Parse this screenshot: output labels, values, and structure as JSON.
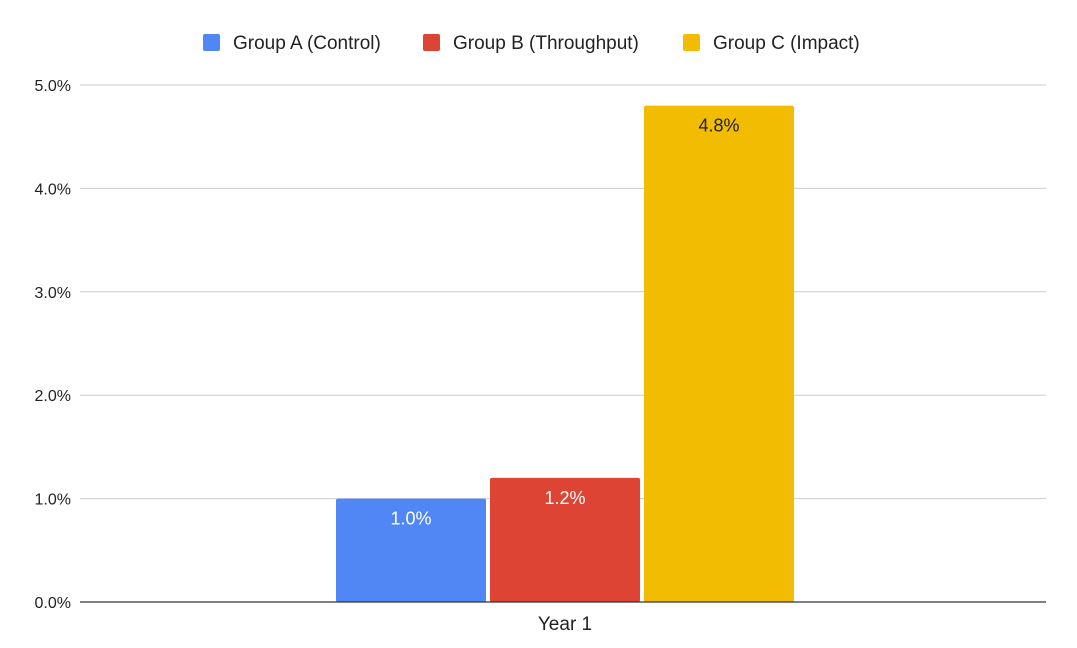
{
  "chart_data": {
    "type": "bar",
    "categories": [
      "Year 1"
    ],
    "series": [
      {
        "name": "Group A (Control)",
        "values": [
          1.0
        ],
        "color": "#5186f5",
        "label_color": "#ffffff",
        "data_labels": [
          "1.0%"
        ]
      },
      {
        "name": "Group B (Throughput)",
        "values": [
          1.2
        ],
        "color": "#dd4433",
        "label_color": "#ffffff",
        "data_labels": [
          "1.2%"
        ]
      },
      {
        "name": "Group C (Impact)",
        "values": [
          4.8
        ],
        "color": "#f2bc02",
        "label_color": "#222222",
        "data_labels": [
          "4.8%"
        ]
      }
    ],
    "ylim": [
      0,
      5
    ],
    "yticks": [
      0,
      1,
      2,
      3,
      4,
      5
    ],
    "ytick_labels": [
      "0.0%",
      "1.0%",
      "2.0%",
      "3.0%",
      "4.0%",
      "5.0%"
    ],
    "legend_position": "top",
    "grid": true,
    "colors": {
      "gridline": "#cccccc",
      "axis": "#333333",
      "text": "#222222"
    }
  }
}
